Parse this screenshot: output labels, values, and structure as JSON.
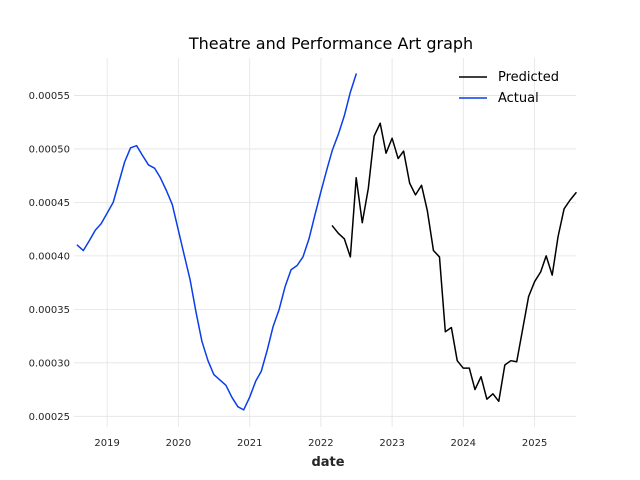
{
  "chart_data": {
    "type": "line",
    "title": "Theatre and Performance Art graph",
    "xlabel": "date",
    "ylabel": "",
    "xlim": [
      "2018-07-15",
      "2025-08-01"
    ],
    "ylim": [
      0.00024,
      0.000585
    ],
    "grid": true,
    "legend_position": "top-right",
    "x_ticks": [
      "2019",
      "2020",
      "2021",
      "2022",
      "2023",
      "2024",
      "2025"
    ],
    "y_ticks": [
      "0.00025",
      "0.00030",
      "0.00035",
      "0.00040",
      "0.00045",
      "0.00050",
      "0.00055"
    ],
    "y_tick_values": [
      0.00025,
      0.0003,
      0.00035,
      0.0004,
      0.00045,
      0.0005,
      0.00055
    ],
    "series": [
      {
        "name": "Predicted",
        "color": "#000000",
        "x": [
          "2022-03-01",
          "2022-04-01",
          "2022-05-01",
          "2022-06-01",
          "2022-07-01",
          "2022-08-01",
          "2022-09-01",
          "2022-10-01",
          "2022-11-01",
          "2022-12-01",
          "2023-01-01",
          "2023-02-01",
          "2023-03-01",
          "2023-04-01",
          "2023-05-01",
          "2023-06-01",
          "2023-07-01",
          "2023-08-01",
          "2023-09-01",
          "2023-10-01",
          "2023-11-01",
          "2023-12-01",
          "2024-01-01",
          "2024-02-01",
          "2024-03-01",
          "2024-04-01",
          "2024-05-01",
          "2024-06-01",
          "2024-07-01",
          "2024-08-01",
          "2024-09-01",
          "2024-10-01",
          "2024-11-01",
          "2024-12-01",
          "2025-01-01",
          "2025-02-01",
          "2025-03-01",
          "2025-04-01",
          "2025-05-01",
          "2025-06-01",
          "2025-07-01",
          "2025-08-01"
        ],
        "values": [
          0.000428,
          0.000421,
          0.000416,
          0.000399,
          0.000473,
          0.000431,
          0.000463,
          0.000512,
          0.000524,
          0.000496,
          0.00051,
          0.000491,
          0.000498,
          0.000468,
          0.000457,
          0.000466,
          0.000442,
          0.000405,
          0.000399,
          0.000329,
          0.000333,
          0.000302,
          0.000295,
          0.000295,
          0.000275,
          0.000287,
          0.000266,
          0.000271,
          0.000264,
          0.000298,
          0.000302,
          0.000301,
          0.000332,
          0.000362,
          0.000376,
          0.000385,
          0.0004,
          0.000382,
          0.000418,
          0.000444,
          0.000452,
          0.000459
        ]
      },
      {
        "name": "Actual",
        "color": "#0a3fe8",
        "x": [
          "2018-08-01",
          "2018-09-01",
          "2018-10-01",
          "2018-11-01",
          "2018-12-01",
          "2019-01-01",
          "2019-02-01",
          "2019-03-01",
          "2019-04-01",
          "2019-05-01",
          "2019-06-01",
          "2019-07-01",
          "2019-08-01",
          "2019-09-01",
          "2019-10-01",
          "2019-11-01",
          "2019-12-01",
          "2020-01-01",
          "2020-02-01",
          "2020-03-01",
          "2020-04-01",
          "2020-05-01",
          "2020-06-01",
          "2020-07-01",
          "2020-08-01",
          "2020-09-01",
          "2020-10-01",
          "2020-11-01",
          "2020-12-01",
          "2021-01-01",
          "2021-02-01",
          "2021-03-01",
          "2021-04-01",
          "2021-05-01",
          "2021-06-01",
          "2021-07-01",
          "2021-08-01",
          "2021-09-01",
          "2021-10-01",
          "2021-11-01",
          "2021-12-01",
          "2022-01-01",
          "2022-02-01",
          "2022-03-01",
          "2022-04-01",
          "2022-05-01",
          "2022-06-01",
          "2022-07-01"
        ],
        "values": [
          0.00041,
          0.000405,
          0.000414,
          0.000424,
          0.00043,
          0.00044,
          0.00045,
          0.000468,
          0.000488,
          0.000501,
          0.000503,
          0.000494,
          0.000485,
          0.000482,
          0.000473,
          0.000461,
          0.000448,
          0.000424,
          0.0004,
          0.000378,
          0.000347,
          0.00032,
          0.000302,
          0.000289,
          0.000284,
          0.000279,
          0.000268,
          0.000259,
          0.000256,
          0.000268,
          0.000283,
          0.000292,
          0.000312,
          0.000334,
          0.00035,
          0.000371,
          0.000387,
          0.000391,
          0.000399,
          0.000416,
          0.000438,
          0.00046,
          0.000481,
          0.000499,
          0.000514,
          0.000531,
          0.000553,
          0.00057
        ]
      }
    ]
  }
}
